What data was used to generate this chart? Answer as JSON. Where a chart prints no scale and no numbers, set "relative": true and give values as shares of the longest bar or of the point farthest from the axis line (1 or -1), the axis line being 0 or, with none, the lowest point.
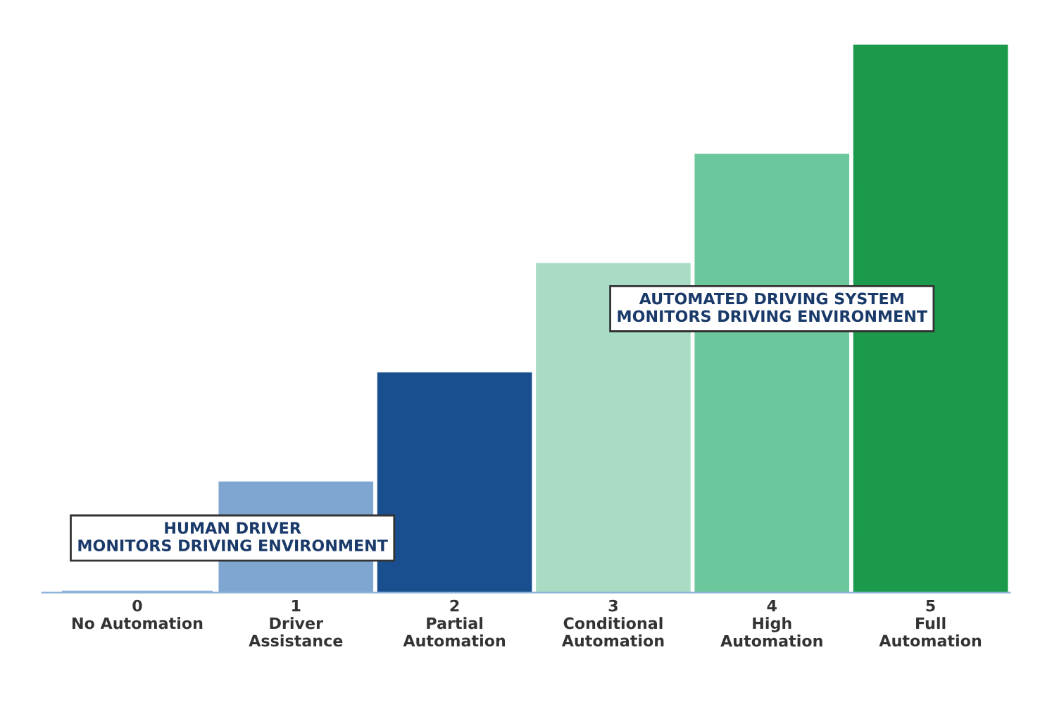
{
  "chart_data": {
    "type": "bar",
    "relative": true,
    "categories": [
      "0\nNo Automation",
      "1\nDriver\nAssistance",
      "2\nPartial\nAutomation",
      "3\nConditional\nAutomation",
      "4\nHigh\nAutomation",
      "5\nFull\nAutomation"
    ],
    "values": [
      0,
      0.2,
      0.4,
      0.6,
      0.8,
      1.0
    ],
    "colors": [
      "#8fb3d9",
      "#7fa6d1",
      "#1a4f8f",
      "#a8dcc4",
      "#6cc79c",
      "#1a9a4a"
    ],
    "annotations": [
      "HUMAN DRIVER\nMONITORS DRIVING ENVIRONMENT",
      "AUTOMATED DRIVING SYSTEM\nMONITORS DRIVING ENVIRONMENT"
    ],
    "grid": false,
    "legend": false
  }
}
